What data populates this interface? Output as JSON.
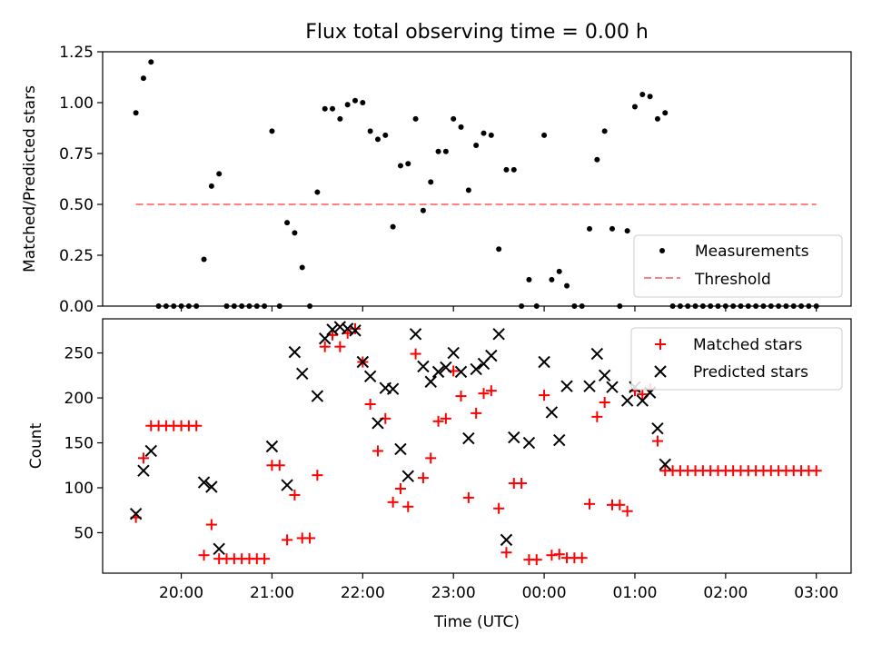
{
  "chart_data": [
    {
      "type": "scatter",
      "title": "Flux total observing time = 0.00 h",
      "ylabel": "Matched/Predicted stars",
      "xlabel": "",
      "ylim": [
        0,
        1.25
      ],
      "yticks": [
        "0.00",
        "0.25",
        "0.50",
        "0.75",
        "1.00",
        "1.25"
      ],
      "grid": false,
      "legend_position": "bottom-right",
      "threshold": {
        "name": "Threshold",
        "value": 0.5,
        "x_start": "19:30",
        "x_end": "03:00",
        "color": "#ff8080"
      },
      "series": [
        {
          "name": "Measurements",
          "marker": "dot",
          "color": "#000000",
          "points": [
            [
              "19:30",
              0.95
            ],
            [
              "19:35",
              1.12
            ],
            [
              "19:40",
              1.2
            ],
            [
              "19:45",
              0
            ],
            [
              "19:50",
              0
            ],
            [
              "19:55",
              0
            ],
            [
              "20:00",
              0
            ],
            [
              "20:05",
              0
            ],
            [
              "20:10",
              0
            ],
            [
              "20:15",
              0.23
            ],
            [
              "20:20",
              0.59
            ],
            [
              "20:25",
              0.65
            ],
            [
              "20:30",
              0
            ],
            [
              "20:35",
              0
            ],
            [
              "20:40",
              0
            ],
            [
              "20:45",
              0
            ],
            [
              "20:50",
              0
            ],
            [
              "20:55",
              0
            ],
            [
              "21:00",
              0.86
            ],
            [
              "21:05",
              0
            ],
            [
              "21:10",
              0.41
            ],
            [
              "21:15",
              0.36
            ],
            [
              "21:20",
              0.19
            ],
            [
              "21:25",
              0
            ],
            [
              "21:30",
              0.56
            ],
            [
              "21:35",
              0.97
            ],
            [
              "21:40",
              0.97
            ],
            [
              "21:45",
              0.92
            ],
            [
              "21:50",
              0.99
            ],
            [
              "21:55",
              1.01
            ],
            [
              "22:00",
              1.0
            ],
            [
              "22:05",
              0.86
            ],
            [
              "22:10",
              0.82
            ],
            [
              "22:15",
              0.84
            ],
            [
              "22:20",
              0.39
            ],
            [
              "22:25",
              0.69
            ],
            [
              "22:30",
              0.7
            ],
            [
              "22:35",
              0.92
            ],
            [
              "22:40",
              0.47
            ],
            [
              "22:45",
              0.61
            ],
            [
              "22:50",
              0.76
            ],
            [
              "22:55",
              0.76
            ],
            [
              "23:00",
              0.92
            ],
            [
              "23:05",
              0.88
            ],
            [
              "23:10",
              0.57
            ],
            [
              "23:15",
              0.79
            ],
            [
              "23:20",
              0.85
            ],
            [
              "23:25",
              0.84
            ],
            [
              "23:30",
              0.28
            ],
            [
              "23:35",
              0.67
            ],
            [
              "23:40",
              0.67
            ],
            [
              "23:45",
              0
            ],
            [
              "23:50",
              0.13
            ],
            [
              "23:55",
              0
            ],
            [
              "00:00",
              0.84
            ],
            [
              "00:05",
              0.13
            ],
            [
              "00:10",
              0.17
            ],
            [
              "00:15",
              0.1
            ],
            [
              "00:20",
              0
            ],
            [
              "00:25",
              0
            ],
            [
              "00:30",
              0.38
            ],
            [
              "00:35",
              0.72
            ],
            [
              "00:40",
              0.86
            ],
            [
              "00:45",
              0.38
            ],
            [
              "00:50",
              0
            ],
            [
              "00:55",
              0.37
            ],
            [
              "01:00",
              0.98
            ],
            [
              "01:05",
              1.04
            ],
            [
              "01:10",
              1.03
            ],
            [
              "01:15",
              0.92
            ],
            [
              "01:20",
              0.95
            ],
            [
              "01:25",
              0
            ],
            [
              "01:30",
              0
            ],
            [
              "01:35",
              0
            ],
            [
              "01:40",
              0
            ],
            [
              "01:45",
              0
            ],
            [
              "01:50",
              0
            ],
            [
              "01:55",
              0
            ],
            [
              "02:00",
              0
            ],
            [
              "02:05",
              0
            ],
            [
              "02:10",
              0
            ],
            [
              "02:15",
              0
            ],
            [
              "02:20",
              0
            ],
            [
              "02:25",
              0
            ],
            [
              "02:30",
              0
            ],
            [
              "02:35",
              0
            ],
            [
              "02:40",
              0
            ],
            [
              "02:45",
              0
            ],
            [
              "02:50",
              0
            ],
            [
              "02:55",
              0
            ],
            [
              "03:00",
              0
            ]
          ]
        }
      ]
    },
    {
      "type": "scatter",
      "title": "",
      "ylabel": "Count",
      "xlabel": "Time (UTC)",
      "ylim": [
        5,
        288
      ],
      "yticks": [
        "50",
        "100",
        "150",
        "200",
        "250"
      ],
      "xlim": [
        "19:08",
        "03:23"
      ],
      "xticks": [
        "20:00",
        "21:00",
        "22:00",
        "23:00",
        "00:00",
        "01:00",
        "02:00",
        "03:00"
      ],
      "grid": false,
      "legend_position": "top-right",
      "series": [
        {
          "name": "Matched stars",
          "marker": "plus",
          "color": "#ff0000",
          "points": [
            [
              "19:30",
              67
            ],
            [
              "19:35",
              133
            ],
            [
              "19:40",
              169
            ],
            [
              "19:45",
              169
            ],
            [
              "19:50",
              169
            ],
            [
              "19:55",
              169
            ],
            [
              "20:00",
              169
            ],
            [
              "20:05",
              169
            ],
            [
              "20:10",
              169
            ],
            [
              "20:15",
              25
            ],
            [
              "20:20",
              59
            ],
            [
              "20:25",
              21
            ],
            [
              "20:30",
              21
            ],
            [
              "20:35",
              21
            ],
            [
              "20:40",
              21
            ],
            [
              "20:45",
              21
            ],
            [
              "20:50",
              21
            ],
            [
              "20:55",
              21
            ],
            [
              "21:00",
              125
            ],
            [
              "21:05",
              125
            ],
            [
              "21:10",
              42
            ],
            [
              "21:15",
              92
            ],
            [
              "21:20",
              44
            ],
            [
              "21:25",
              44
            ],
            [
              "21:30",
              114
            ],
            [
              "21:35",
              257
            ],
            [
              "21:40",
              270
            ],
            [
              "21:45",
              257
            ],
            [
              "21:50",
              272
            ],
            [
              "21:55",
              277
            ],
            [
              "22:00",
              240
            ],
            [
              "22:05",
              193
            ],
            [
              "22:10",
              141
            ],
            [
              "22:15",
              177
            ],
            [
              "22:20",
              84
            ],
            [
              "22:25",
              99
            ],
            [
              "22:30",
              79
            ],
            [
              "22:35",
              249
            ],
            [
              "22:40",
              111
            ],
            [
              "22:45",
              133
            ],
            [
              "22:50",
              174
            ],
            [
              "22:55",
              177
            ],
            [
              "23:00",
              230
            ],
            [
              "23:05",
              202
            ],
            [
              "23:10",
              89
            ],
            [
              "23:15",
              183
            ],
            [
              "23:20",
              205
            ],
            [
              "23:25",
              208
            ],
            [
              "23:30",
              77
            ],
            [
              "23:35",
              28
            ],
            [
              "23:40",
              105
            ],
            [
              "23:45",
              105
            ],
            [
              "23:50",
              20
            ],
            [
              "23:55",
              20
            ],
            [
              "00:00",
              203
            ],
            [
              "00:05",
              25
            ],
            [
              "00:10",
              26
            ],
            [
              "00:15",
              22
            ],
            [
              "00:20",
              22
            ],
            [
              "00:25",
              22
            ],
            [
              "00:30",
              82
            ],
            [
              "00:35",
              179
            ],
            [
              "00:40",
              195
            ],
            [
              "00:45",
              81
            ],
            [
              "00:50",
              81
            ],
            [
              "00:55",
              74
            ],
            [
              "01:00",
              208
            ],
            [
              "01:05",
              204
            ],
            [
              "01:10",
              210
            ],
            [
              "01:15",
              152
            ],
            [
              "01:20",
              119
            ],
            [
              "01:25",
              119
            ],
            [
              "01:30",
              119
            ],
            [
              "01:35",
              119
            ],
            [
              "01:40",
              119
            ],
            [
              "01:45",
              119
            ],
            [
              "01:50",
              119
            ],
            [
              "01:55",
              119
            ],
            [
              "02:00",
              119
            ],
            [
              "02:05",
              119
            ],
            [
              "02:10",
              119
            ],
            [
              "02:15",
              119
            ],
            [
              "02:20",
              119
            ],
            [
              "02:25",
              119
            ],
            [
              "02:30",
              119
            ],
            [
              "02:35",
              119
            ],
            [
              "02:40",
              119
            ],
            [
              "02:45",
              119
            ],
            [
              "02:50",
              119
            ],
            [
              "02:55",
              119
            ],
            [
              "03:00",
              119
            ]
          ]
        },
        {
          "name": "Predicted stars",
          "marker": "x",
          "color": "#000000",
          "points": [
            [
              "19:30",
              71
            ],
            [
              "19:35",
              119
            ],
            [
              "19:40",
              141
            ],
            [
              "20:15",
              106
            ],
            [
              "20:20",
              101
            ],
            [
              "20:25",
              32
            ],
            [
              "21:00",
              146
            ],
            [
              "21:10",
              103
            ],
            [
              "21:15",
              251
            ],
            [
              "21:20",
              227
            ],
            [
              "21:30",
              202
            ],
            [
              "21:35",
              266
            ],
            [
              "21:40",
              276
            ],
            [
              "21:45",
              279
            ],
            [
              "21:50",
              277
            ],
            [
              "21:55",
              275
            ],
            [
              "22:00",
              240
            ],
            [
              "22:05",
              224
            ],
            [
              "22:10",
              172
            ],
            [
              "22:15",
              211
            ],
            [
              "22:20",
              210
            ],
            [
              "22:25",
              143
            ],
            [
              "22:30",
              113
            ],
            [
              "22:35",
              271
            ],
            [
              "22:40",
              235
            ],
            [
              "22:45",
              218
            ],
            [
              "22:50",
              229
            ],
            [
              "22:55",
              234
            ],
            [
              "23:00",
              250
            ],
            [
              "23:05",
              229
            ],
            [
              "23:10",
              155
            ],
            [
              "23:15",
              232
            ],
            [
              "23:20",
              238
            ],
            [
              "23:25",
              247
            ],
            [
              "23:30",
              271
            ],
            [
              "23:35",
              42
            ],
            [
              "23:40",
              156
            ],
            [
              "23:50",
              150
            ],
            [
              "00:00",
              240
            ],
            [
              "00:05",
              184
            ],
            [
              "00:10",
              153
            ],
            [
              "00:15",
              213
            ],
            [
              "00:30",
              213
            ],
            [
              "00:35",
              249
            ],
            [
              "00:40",
              225
            ],
            [
              "00:45",
              212
            ],
            [
              "00:55",
              197
            ],
            [
              "01:00",
              212
            ],
            [
              "01:05",
              197
            ],
            [
              "01:10",
              206
            ],
            [
              "01:15",
              166
            ],
            [
              "01:20",
              126
            ]
          ]
        }
      ]
    }
  ]
}
